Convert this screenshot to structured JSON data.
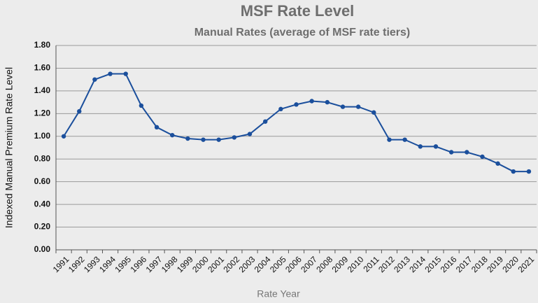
{
  "chart_data": {
    "type": "line",
    "title": "MSF Rate Level",
    "subtitle": "Manual  Rates (average of MSF rate tiers)",
    "y_label": "Indexed Manual Premium Rate Level",
    "x_label": "Rate Year",
    "categories": [
      "1991",
      "1992",
      "1993",
      "1994",
      "1995",
      "1996",
      "1997",
      "1998",
      "1999",
      "2000",
      "2001",
      "2002",
      "2003",
      "2004",
      "2005",
      "2006",
      "2007",
      "2008",
      "2009",
      "2010",
      "2011",
      "2012",
      "2013",
      "2014",
      "2015",
      "2016",
      "2017",
      "2018",
      "2019",
      "2020",
      "2021"
    ],
    "series": [
      {
        "color": "#1b4f9c",
        "values": [
          1.0,
          1.22,
          1.5,
          1.55,
          1.55,
          1.27,
          1.08,
          1.01,
          0.98,
          0.97,
          0.97,
          0.99,
          1.02,
          1.13,
          1.24,
          1.28,
          1.31,
          1.3,
          1.26,
          1.26,
          1.21,
          0.97,
          0.97,
          0.91,
          0.91,
          0.86,
          0.86,
          0.82,
          0.76,
          0.69,
          0.69
        ]
      }
    ],
    "ylim": [
      0,
      1.8
    ],
    "yticks": [
      {
        "value": 0,
        "label": "0.00"
      },
      {
        "value": 0.2,
        "label": "0.20"
      },
      {
        "value": 0.4,
        "label": "0.40"
      },
      {
        "value": 0.6,
        "label": "0.60"
      },
      {
        "value": 0.8,
        "label": "0.80"
      },
      {
        "value": 1.0,
        "label": "1.00"
      },
      {
        "value": 1.2,
        "label": "1.20"
      },
      {
        "value": 1.4,
        "label": "1.40"
      },
      {
        "value": 1.6,
        "label": "1.60"
      },
      {
        "value": 1.8,
        "label": "1.80"
      }
    ],
    "grid": true
  }
}
